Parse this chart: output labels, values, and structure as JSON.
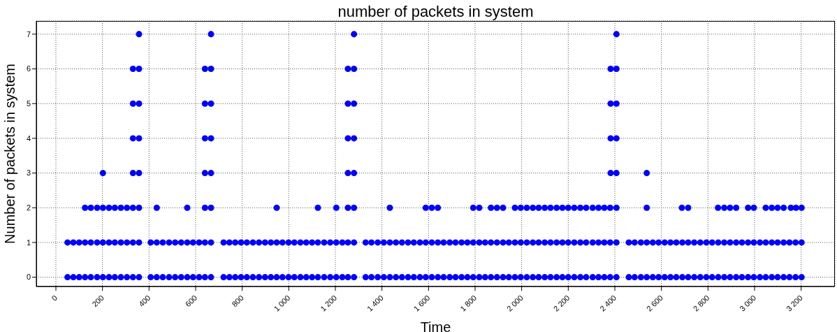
{
  "chart_data": {
    "type": "scatter",
    "title": "number of packets in system",
    "xlabel": "Time",
    "ylabel": "Number of packets in system",
    "xlim": [
      -84,
      3345
    ],
    "ylim": [
      -0.27,
      7.38
    ],
    "xticks": [
      0,
      200,
      400,
      600,
      800,
      {
        "value": 1000,
        "label": "1 000"
      },
      {
        "value": 1200,
        "label": "1 200"
      },
      {
        "value": 1400,
        "label": "1 400"
      },
      {
        "value": 1600,
        "label": "1 600"
      },
      {
        "value": 1800,
        "label": "1 800"
      },
      {
        "value": 2000,
        "label": "2 000"
      },
      {
        "value": 2200,
        "label": "2 200"
      },
      {
        "value": 2400,
        "label": "2 400"
      },
      {
        "value": 2600,
        "label": "2 600"
      },
      {
        "value": 2800,
        "label": "2 800"
      },
      {
        "value": 3000,
        "label": "3 000"
      },
      {
        "value": 3200,
        "label": "3 200"
      }
    ],
    "yticks": [
      0,
      1,
      2,
      3,
      4,
      5,
      6,
      7
    ],
    "grid": true,
    "marker": "circle",
    "series": [
      {
        "color": "#0000ff",
        "x": [
          50,
          75,
          100,
          125,
          150,
          177,
          202,
          228,
          253,
          279,
          305,
          331,
          357,
          407,
          433,
          459,
          486,
          512,
          538,
          564,
          589,
          615,
          640,
          666,
          720,
          745,
          770,
          795,
          820,
          846,
          872,
          898,
          923,
          948,
          973,
          999,
          1024,
          1050,
          1075,
          1100,
          1125,
          1152,
          1178,
          1204,
          1230,
          1254,
          1280,
          1330,
          1355,
          1382,
          1408,
          1434,
          1460,
          1486,
          1512,
          1537,
          1563,
          1588,
          1614,
          1640,
          1665,
          1691,
          1716,
          1742,
          1767,
          1792,
          1818,
          1843,
          1868,
          1894,
          1920,
          1945,
          1971,
          1996,
          2022,
          2048,
          2073,
          2099,
          2124,
          2150,
          2175,
          2200,
          2226,
          2252,
          2277,
          2305,
          2330,
          2355,
          2380,
          2407,
          2460,
          2485,
          2512,
          2537,
          2563,
          2588,
          2614,
          2639,
          2664,
          2690,
          2715,
          2741,
          2767,
          2793,
          2818,
          2844,
          2870,
          2895,
          2921,
          2946,
          2972,
          2997,
          3023,
          3048,
          3074,
          3099,
          3125,
          3150,
          3176,
          3202
        ],
        "values": [
          0,
          0,
          0,
          0,
          0,
          0,
          0,
          0,
          0,
          0,
          0,
          0,
          0,
          0,
          0,
          0,
          0,
          0,
          0,
          0,
          0,
          0,
          0,
          0,
          0,
          0,
          0,
          0,
          0,
          0,
          0,
          0,
          0,
          0,
          0,
          0,
          0,
          0,
          0,
          0,
          0,
          0,
          0,
          0,
          0,
          0,
          0,
          0,
          0,
          0,
          0,
          0,
          0,
          0,
          0,
          0,
          0,
          0,
          0,
          0,
          0,
          0,
          0,
          0,
          0,
          0,
          0,
          0,
          0,
          0,
          0,
          0,
          0,
          0,
          0,
          0,
          0,
          0,
          0,
          0,
          0,
          0,
          0,
          0,
          0,
          0,
          0,
          0,
          0,
          0,
          0,
          0,
          0,
          0,
          0,
          0,
          0,
          0,
          0,
          0,
          0,
          0,
          0,
          0,
          0,
          0,
          0,
          0,
          0,
          0,
          0,
          0,
          0,
          0,
          0,
          0,
          0,
          0,
          0,
          0
        ]
      },
      {
        "color": "#0000ff",
        "x": [
          50,
          75,
          100,
          125,
          150,
          177,
          202,
          228,
          253,
          279,
          305,
          331,
          357,
          407,
          433,
          459,
          486,
          512,
          538,
          564,
          589,
          615,
          640,
          666,
          720,
          745,
          770,
          795,
          820,
          846,
          872,
          898,
          923,
          948,
          973,
          999,
          1024,
          1050,
          1075,
          1100,
          1125,
          1152,
          1178,
          1204,
          1230,
          1254,
          1280,
          1330,
          1355,
          1382,
          1408,
          1434,
          1460,
          1486,
          1512,
          1537,
          1563,
          1588,
          1614,
          1640,
          1665,
          1691,
          1716,
          1742,
          1767,
          1792,
          1818,
          1843,
          1868,
          1894,
          1920,
          1945,
          1971,
          1996,
          2022,
          2048,
          2073,
          2099,
          2124,
          2150,
          2175,
          2200,
          2226,
          2252,
          2277,
          2305,
          2330,
          2355,
          2380,
          2407,
          2460,
          2485,
          2512,
          2537,
          2563,
          2588,
          2614,
          2639,
          2664,
          2690,
          2715,
          2741,
          2767,
          2793,
          2818,
          2844,
          2870,
          2895,
          2921,
          2946,
          2972,
          2997,
          3023,
          3048,
          3074,
          3099,
          3125,
          3150,
          3176,
          3202
        ],
        "values": [
          1,
          1,
          1,
          1,
          1,
          1,
          1,
          1,
          1,
          1,
          1,
          1,
          1,
          1,
          1,
          1,
          1,
          1,
          1,
          1,
          1,
          1,
          1,
          1,
          1,
          1,
          1,
          1,
          1,
          1,
          1,
          1,
          1,
          1,
          1,
          1,
          1,
          1,
          1,
          1,
          1,
          1,
          1,
          1,
          1,
          1,
          1,
          1,
          1,
          1,
          1,
          1,
          1,
          1,
          1,
          1,
          1,
          1,
          1,
          1,
          1,
          1,
          1,
          1,
          1,
          1,
          1,
          1,
          1,
          1,
          1,
          1,
          1,
          1,
          1,
          1,
          1,
          1,
          1,
          1,
          1,
          1,
          1,
          1,
          1,
          1,
          1,
          1,
          1,
          1,
          1,
          1,
          1,
          1,
          1,
          1,
          1,
          1,
          1,
          1,
          1,
          1,
          1,
          1,
          1,
          1,
          1,
          1,
          1,
          1,
          1,
          1,
          1,
          1,
          1,
          1,
          1,
          1,
          1,
          1
        ]
      },
      {
        "color": "#0000ff",
        "x": [
          125,
          150,
          177,
          202,
          228,
          253,
          279,
          305,
          331,
          357,
          433,
          564,
          640,
          666,
          948,
          1125,
          1204,
          1254,
          1280,
          1434,
          1588,
          1614,
          1640,
          1792,
          1818,
          1868,
          1894,
          1920,
          1971,
          1996,
          2022,
          2048,
          2073,
          2099,
          2124,
          2150,
          2175,
          2200,
          2226,
          2252,
          2277,
          2305,
          2330,
          2355,
          2380,
          2407,
          2537,
          2688,
          2715,
          2843,
          2870,
          2895,
          2921,
          2972,
          2997,
          3048,
          3074,
          3099,
          3125,
          3156,
          3178,
          3202
        ],
        "values": [
          2,
          2,
          2,
          2,
          2,
          2,
          2,
          2,
          2,
          2,
          2,
          2,
          2,
          2,
          2,
          2,
          2,
          2,
          2,
          2,
          2,
          2,
          2,
          2,
          2,
          2,
          2,
          2,
          2,
          2,
          2,
          2,
          2,
          2,
          2,
          2,
          2,
          2,
          2,
          2,
          2,
          2,
          2,
          2,
          2,
          2,
          2,
          2,
          2,
          2,
          2,
          2,
          2,
          2,
          2,
          2,
          2,
          2,
          2,
          2,
          2,
          2
        ]
      },
      {
        "color": "#0000ff",
        "x": [
          202,
          331,
          357,
          640,
          666,
          1254,
          1280,
          2382,
          2407,
          2537
        ],
        "values": [
          3,
          3,
          3,
          3,
          3,
          3,
          3,
          3,
          3,
          3
        ]
      },
      {
        "color": "#0000ff",
        "x": [
          331,
          357,
          640,
          666,
          1254,
          1280,
          2382,
          2407
        ],
        "values": [
          4,
          4,
          4,
          4,
          4,
          4,
          4,
          4
        ]
      },
      {
        "color": "#0000ff",
        "x": [
          331,
          357,
          640,
          666,
          1254,
          1280,
          2382,
          2407
        ],
        "values": [
          5,
          5,
          5,
          5,
          5,
          5,
          5,
          5
        ]
      },
      {
        "color": "#0000ff",
        "x": [
          331,
          357,
          640,
          666,
          1254,
          1280,
          2382,
          2407
        ],
        "values": [
          6,
          6,
          6,
          6,
          6,
          6,
          6,
          6
        ]
      },
      {
        "color": "#0000ff",
        "x": [
          357,
          666,
          1280,
          2407
        ],
        "values": [
          7,
          7,
          7,
          7
        ]
      }
    ]
  }
}
